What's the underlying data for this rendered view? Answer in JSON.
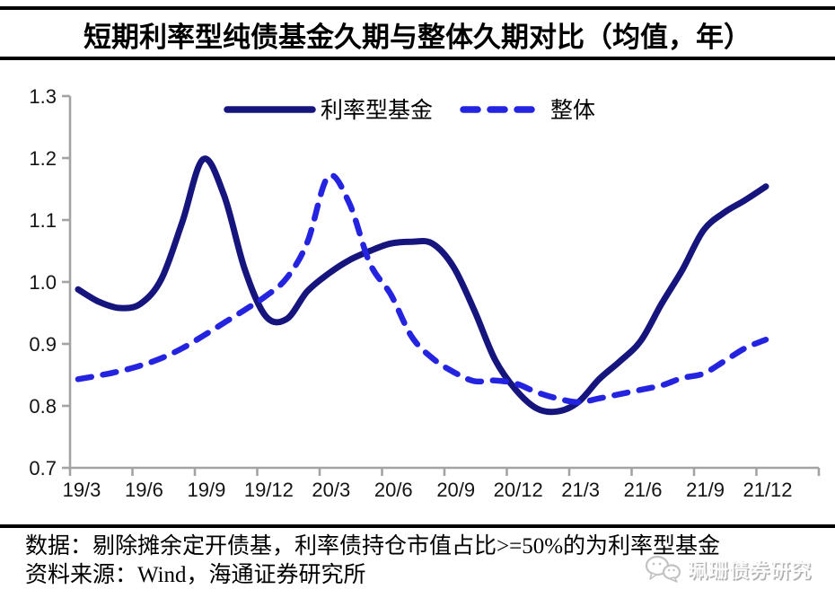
{
  "title": "短期利率型纯债基金久期与整体久期对比（均值，年）",
  "notes": {
    "line1": "数据：剔除摊余定开债基，利率债持仓市值占比>=50%的为利率型基金",
    "line2": "资料来源：Wind，海通证券研究所"
  },
  "watermark": {
    "icon": "wechat-icon",
    "label": "珮珊债券研究"
  },
  "colors": {
    "series_solid": "#15157D",
    "series_dashed": "#2424E0",
    "axis": "#A3A3A3",
    "rule": "#000000",
    "tick_text": "#141414"
  },
  "chart_data": {
    "type": "line",
    "title": "短期利率型纯债基金久期与整体久期对比（均值，年）",
    "xlabel": "",
    "ylabel": "",
    "ylim": [
      0.7,
      1.3
    ],
    "yticks": [
      "0.7",
      "0.8",
      "0.9",
      "1.0",
      "1.1",
      "1.2",
      "1.3"
    ],
    "grid": false,
    "legend_position": "top-center",
    "x_tick_labels": [
      "19/3",
      "19/6",
      "19/9",
      "19/12",
      "20/3",
      "20/6",
      "20/9",
      "20/12",
      "21/3",
      "21/6",
      "21/9",
      "21/12"
    ],
    "x": [
      "19/3",
      "19/4",
      "19/5",
      "19/6",
      "19/7",
      "19/8",
      "19/9",
      "19/10",
      "19/11",
      "19/12",
      "20/1",
      "20/2",
      "20/3",
      "20/4",
      "20/5",
      "20/6",
      "20/7",
      "20/8",
      "20/9",
      "20/10",
      "20/11",
      "20/12",
      "21/1",
      "21/2",
      "21/3",
      "21/4",
      "21/5",
      "21/6",
      "21/7",
      "21/8",
      "21/9",
      "21/10",
      "21/11",
      "21/12"
    ],
    "series": [
      {
        "name": "利率型基金",
        "style": "solid",
        "color": "#15157D",
        "values": [
          0.988,
          0.968,
          0.958,
          0.965,
          1.005,
          1.097,
          1.198,
          1.14,
          1.02,
          0.945,
          0.94,
          0.985,
          1.013,
          1.035,
          1.05,
          1.062,
          1.065,
          1.062,
          1.025,
          0.955,
          0.875,
          0.826,
          0.796,
          0.791,
          0.806,
          0.843,
          0.872,
          0.905,
          0.965,
          1.02,
          1.083,
          1.112,
          1.132,
          1.154
        ]
      },
      {
        "name": "整体",
        "style": "dashed",
        "color": "#2424E0",
        "values": [
          0.843,
          0.849,
          0.856,
          0.865,
          0.877,
          0.893,
          0.913,
          0.934,
          0.955,
          0.977,
          1.006,
          1.064,
          1.17,
          1.128,
          1.03,
          0.98,
          0.912,
          0.877,
          0.855,
          0.84,
          0.841,
          0.836,
          0.822,
          0.812,
          0.806,
          0.812,
          0.819,
          0.826,
          0.833,
          0.845,
          0.852,
          0.872,
          0.893,
          0.907
        ]
      }
    ]
  }
}
